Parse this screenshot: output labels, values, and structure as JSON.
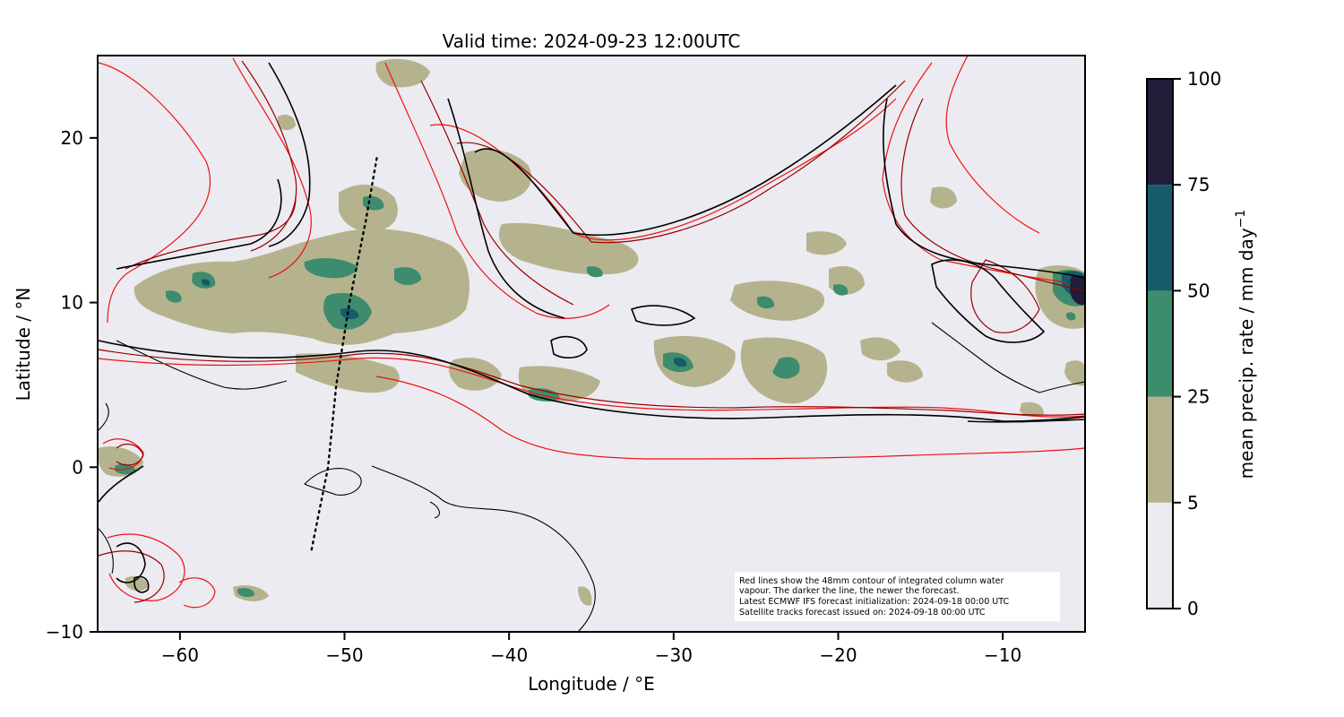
{
  "title": "Valid time: 2024-09-23 12:00UTC",
  "x_axis": {
    "label": "Longitude / °E",
    "ticks": [
      -60,
      -50,
      -40,
      -30,
      -20,
      -10
    ],
    "tick_labels": [
      "−60",
      "−50",
      "−40",
      "−30",
      "−20",
      "−10"
    ],
    "range": [
      -65,
      -5
    ]
  },
  "y_axis": {
    "label": "Latitude / °N",
    "ticks": [
      20,
      10,
      0,
      -10
    ],
    "tick_labels": [
      "20",
      "10",
      "0",
      "−10"
    ],
    "range": [
      -10,
      25
    ]
  },
  "colorbar": {
    "label": "mean precip. rate / mm day",
    "label_superscript": "−1",
    "levels": [
      0,
      5,
      25,
      50,
      75,
      100
    ],
    "level_labels": [
      "0",
      "5",
      "25",
      "50",
      "75",
      "100"
    ],
    "colors": [
      "#ecebf1",
      "#b5b38d",
      "#3d8c6d",
      "#175a6b",
      "#211c38"
    ]
  },
  "note_lines": [
    "Red lines show the 48mm contour of integrated column water",
    "vapour. The darker the line, the newer the forecast.",
    "Latest ECMWF IFS forecast initialization: 2024-09-18 00:00 UTC",
    "Satellite tracks forecast issued on: 2024-09-18 00:00 UTC"
  ],
  "colors": {
    "background": "#ecebf1",
    "contour_old": "#ee1111",
    "contour_mid": "#990000",
    "contour_new": "#000000"
  },
  "satellite_track": [
    {
      "lon": -52.0,
      "lat": -5.0
    },
    {
      "lon": -51.0,
      "lat": 0.0
    },
    {
      "lon": -50.5,
      "lat": 5.0
    },
    {
      "lon": -49.7,
      "lat": 10.0
    },
    {
      "lon": -48.7,
      "lat": 15.0
    },
    {
      "lon": -48.0,
      "lat": 19.0
    }
  ]
}
